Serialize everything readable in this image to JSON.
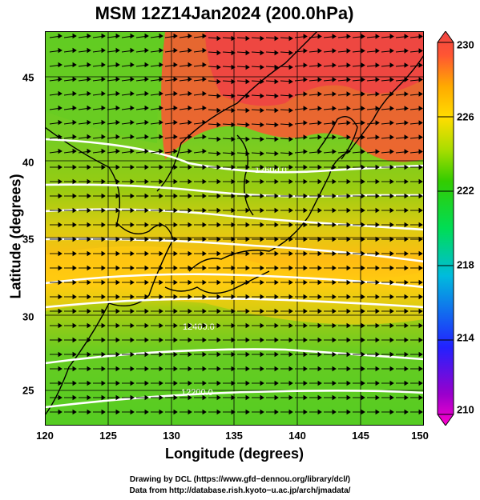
{
  "title": "MSM 12Z14Jan2024 (200.0hPa)",
  "axes": {
    "xlabel": "Longitude (degrees)",
    "ylabel": "Latitude  (degrees)",
    "xlim": [
      120,
      150
    ],
    "ylim": [
      22.4,
      47.6
    ],
    "xticks": [
      "120",
      "125",
      "130",
      "135",
      "140",
      "145",
      "150"
    ],
    "yticks": [
      "25",
      "30",
      "35",
      "40",
      "45"
    ]
  },
  "colorbar": {
    "range": [
      210,
      230
    ],
    "ticks": [
      "230",
      "226",
      "222",
      "218",
      "214",
      "210"
    ],
    "colors": [
      "#ff00cc",
      "#9900cc",
      "#2222ff",
      "#00bbdd",
      "#00dd55",
      "#33cc00",
      "#aadd00",
      "#ffdd00",
      "#ffaa00",
      "#ff5533",
      "#ee4444"
    ]
  },
  "contours": {
    "labels": [
      "12600.0",
      "12400.0",
      "12200.0"
    ],
    "values": [
      12600,
      12400,
      12200
    ]
  },
  "credits": {
    "line1": "Drawing by DCL (https://www.gfd−dennou.org/library/dcl/)",
    "line2": "Data from http://database.rish.kyoto−u.ac.jp/arch/jmadata/"
  }
}
